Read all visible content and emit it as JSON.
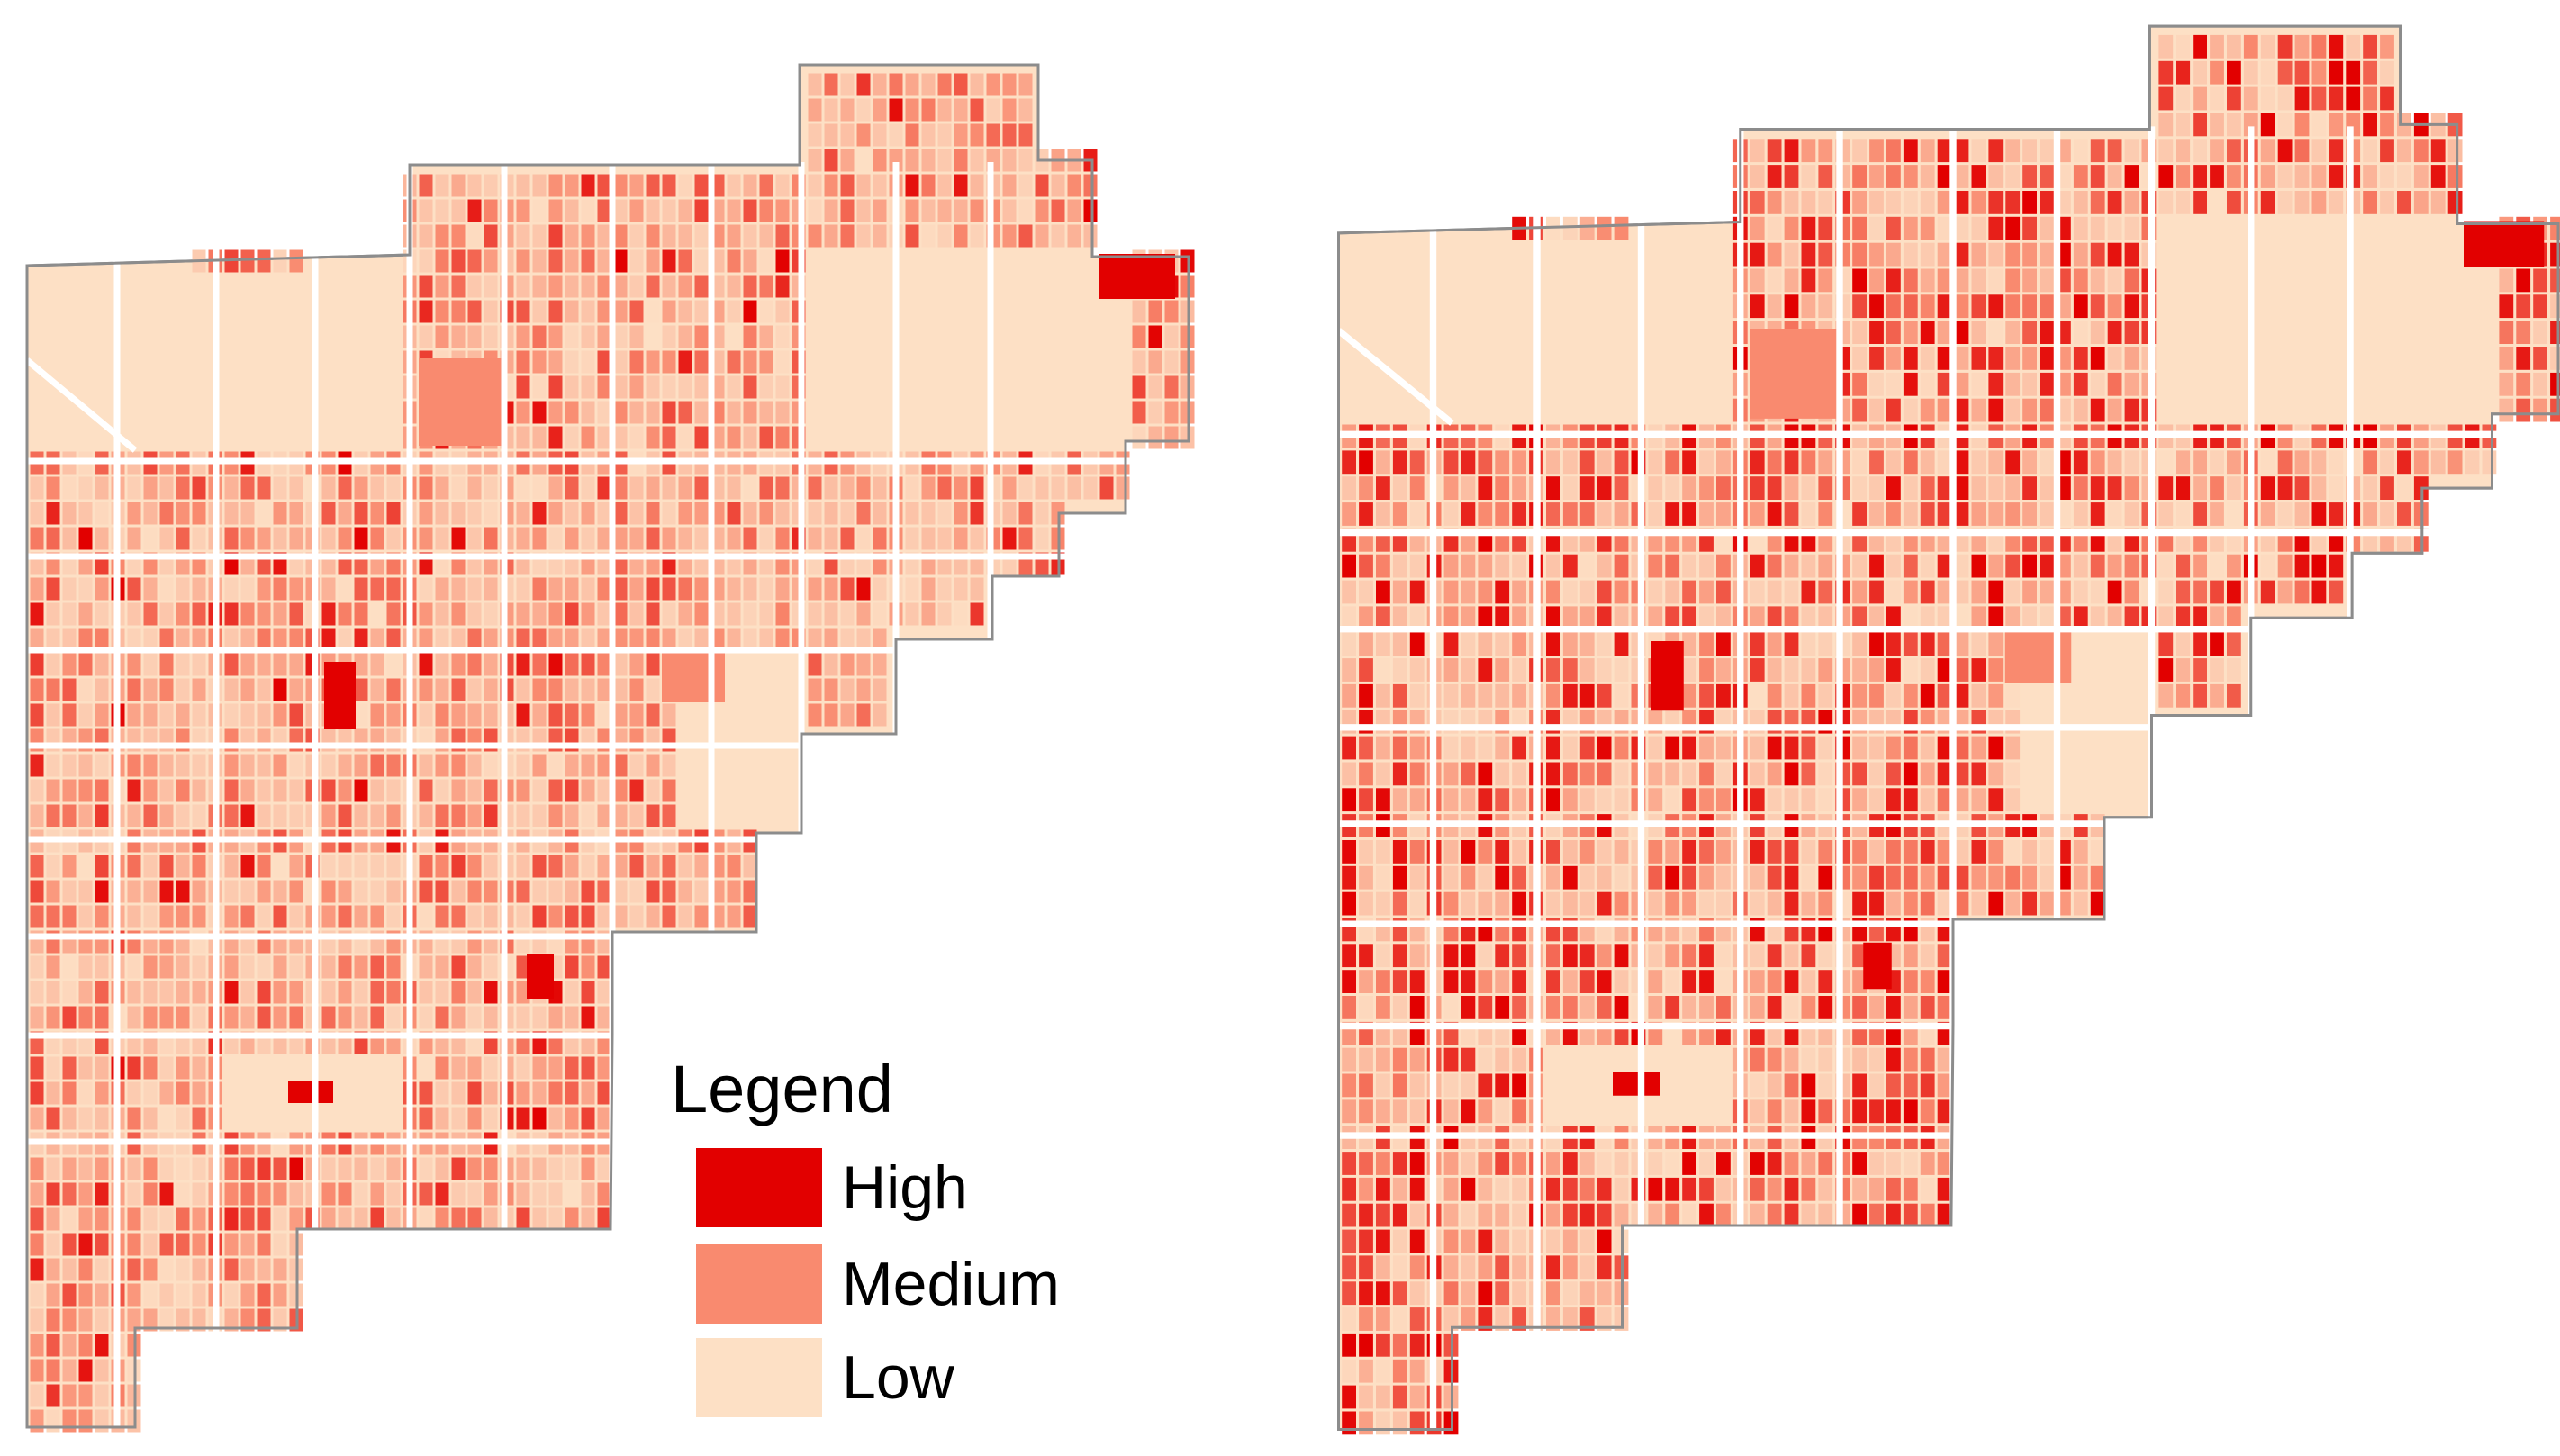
{
  "colors": {
    "high": "#e20000",
    "medium": "#f98a6f",
    "low": "#fde0c5",
    "outline": "#8c8c8c",
    "road": "#ffffff"
  },
  "maps": [
    {
      "name": "left-map",
      "intensity": 0.38
    },
    {
      "name": "right-map",
      "intensity": 0.68
    }
  ],
  "legend": {
    "title": "Legend",
    "items": [
      {
        "label": "High",
        "color": "#e20000"
      },
      {
        "label": "Medium",
        "color": "#f98a6f"
      },
      {
        "label": "Low",
        "color": "#fde0c5"
      }
    ]
  }
}
